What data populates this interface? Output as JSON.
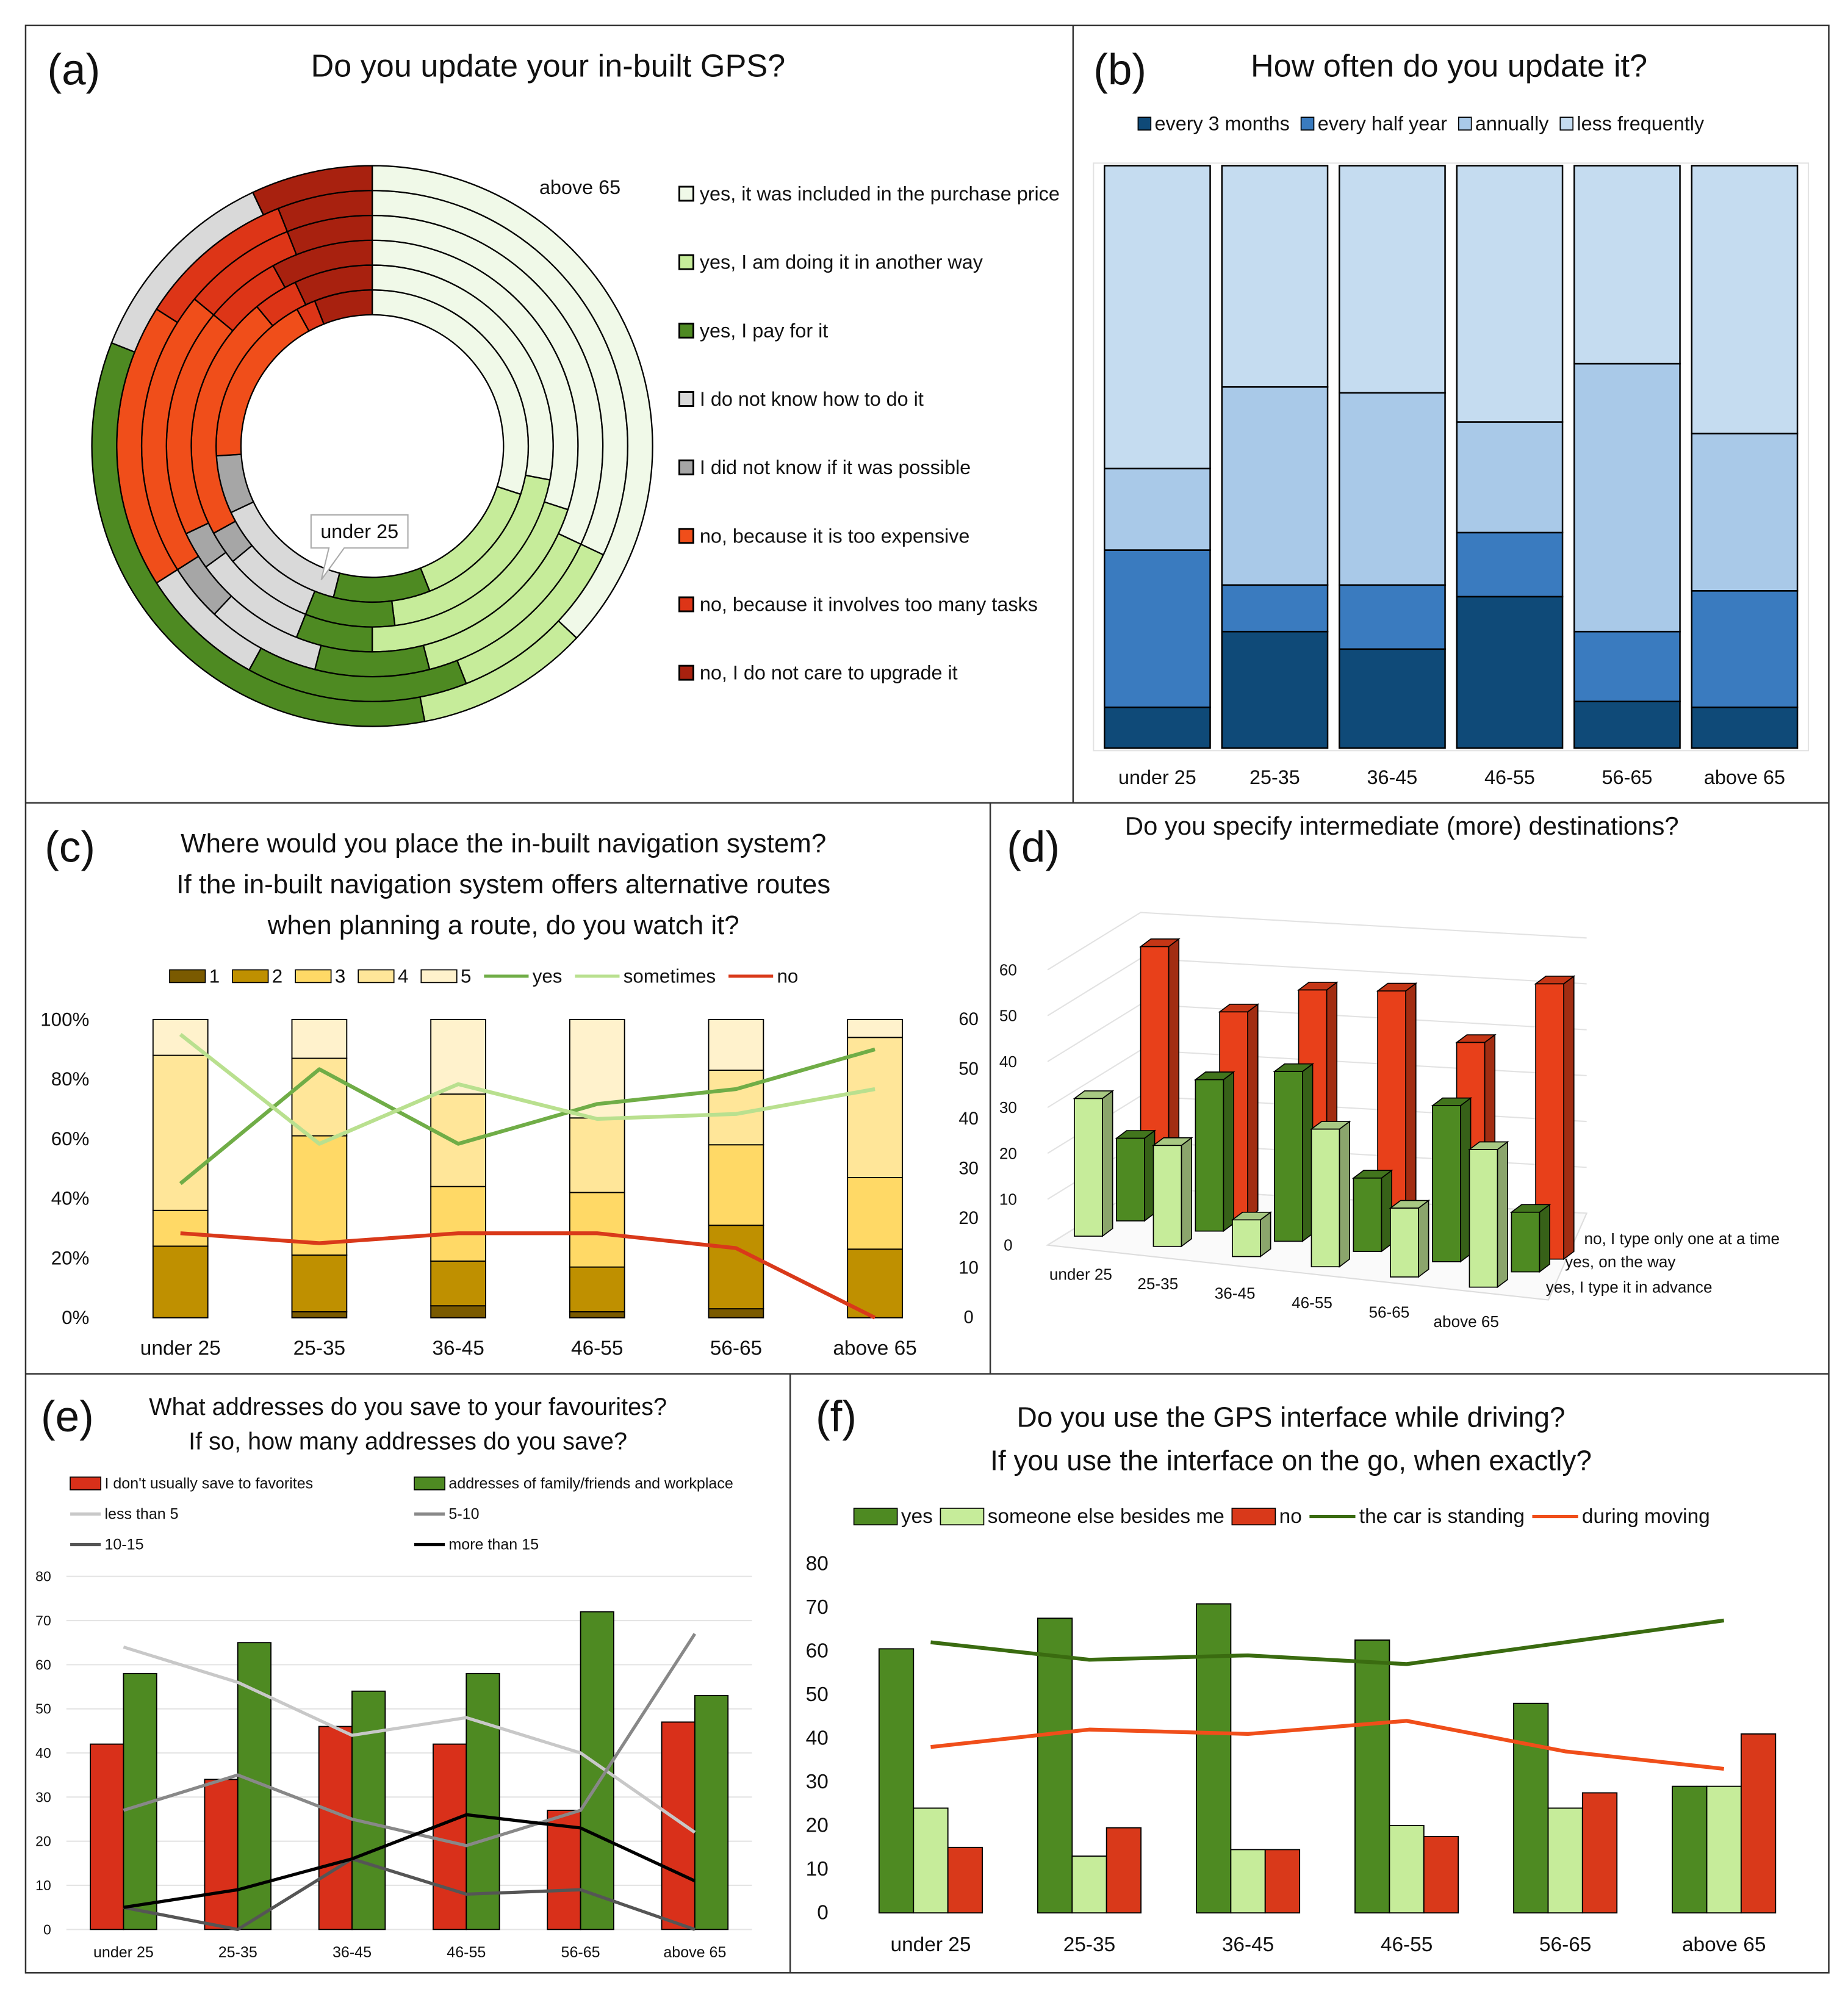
{
  "chart_data": [
    {
      "type": "donut",
      "label": "(a)",
      "title": "Do you update your in-built GPS?",
      "categories": [
        "under 25",
        "25-35",
        "36-45",
        "46-55",
        "56-65",
        "above 65"
      ],
      "series": [
        {
          "name": "yes, it was included in the purchase price",
          "color": "#f0f9e8",
          "values": [
            30,
            28,
            30,
            32,
            32,
            37
          ]
        },
        {
          "name": "yes, I am doing it in another way",
          "color": "#c6ec9a",
          "values": [
            14,
            20,
            20,
            14,
            12,
            10
          ]
        },
        {
          "name": "yes, I pay for it",
          "color": "#4e8a22",
          "values": [
            10,
            8,
            6,
            8,
            14,
            34
          ]
        },
        {
          "name": "I do not know how to do it",
          "color": "#d9d9d9",
          "values": [
            14,
            8,
            9,
            8,
            8,
            12
          ]
        },
        {
          "name": "I did not know if it was possible",
          "color": "#a6a6a6",
          "values": [
            6,
            3,
            3,
            4,
            0,
            0
          ]
        },
        {
          "name": "no, because it is too expensive",
          "color": "#f04e1a",
          "values": [
            18,
            22,
            18,
            20,
            18,
            0
          ]
        },
        {
          "name": "no, because it involves too many tasks",
          "color": "#dd3517",
          "values": [
            2,
            4,
            6,
            8,
            10,
            0
          ]
        },
        {
          "name": "no, I do not care to upgrade it",
          "color": "#a8210f",
          "values": [
            6,
            7,
            8,
            6,
            6,
            7
          ]
        }
      ]
    },
    {
      "type": "stacked_bar",
      "label": "(b)",
      "title": "How often do you update it?",
      "categories": [
        "under 25",
        "25-35",
        "36-45",
        "46-55",
        "56-65",
        "above 65"
      ],
      "ylim": [
        0,
        100
      ],
      "series": [
        {
          "name": "every 3 months",
          "color": "#0f4a78",
          "values": [
            7,
            20,
            17,
            26,
            8,
            7
          ]
        },
        {
          "name": "every half year",
          "color": "#3a7bbf",
          "values": [
            27,
            8,
            11,
            11,
            12,
            20
          ]
        },
        {
          "name": "annually",
          "color": "#a9c9e8",
          "values": [
            14,
            34,
            33,
            19,
            46,
            27
          ]
        },
        {
          "name": "less frequently",
          "color": "#c5dcf0",
          "values": [
            52,
            38,
            39,
            44,
            34,
            46
          ]
        }
      ]
    },
    {
      "type": "bar_line",
      "label": "(c)",
      "stacked": true,
      "title": [
        "Where would you place the in-built navigation system?",
        "If the in-built navigation system offers alternative routes",
        "when planning a route, do you watch it?"
      ],
      "categories": [
        "under 25",
        "25-35",
        "36-45",
        "46-55",
        "56-65",
        "above 65"
      ],
      "ylim": [
        0,
        100
      ],
      "yticks": [
        {
          "value": 0,
          "label": "0%"
        },
        {
          "value": 20,
          "label": "20%"
        },
        {
          "value": 40,
          "label": "40%"
        },
        {
          "value": 60,
          "label": "60%"
        },
        {
          "value": 80,
          "label": "80%"
        },
        {
          "value": 100,
          "label": "100%"
        }
      ],
      "y2lim": [
        0,
        60
      ],
      "y2ticks": [
        0,
        10,
        20,
        30,
        40,
        50,
        60
      ],
      "series": [
        {
          "name": "1",
          "type": "bar",
          "color": "#7a5a00",
          "values": [
            0,
            2,
            4,
            2,
            3,
            0
          ]
        },
        {
          "name": "2",
          "type": "bar",
          "color": "#bf9000",
          "values": [
            24,
            19,
            15,
            15,
            28,
            23
          ]
        },
        {
          "name": "3",
          "type": "bar",
          "color": "#ffd966",
          "values": [
            12,
            40,
            25,
            25,
            27,
            24
          ]
        },
        {
          "name": "4",
          "type": "bar",
          "color": "#ffe699",
          "values": [
            52,
            26,
            31,
            25,
            25,
            47
          ]
        },
        {
          "name": "5",
          "type": "bar",
          "color": "#fff2cc",
          "values": [
            12,
            13,
            25,
            33,
            17,
            6
          ]
        },
        {
          "name": "yes",
          "type": "line",
          "axis": "y2",
          "color": "#70ad47",
          "values": [
            27,
            50,
            35,
            43,
            46,
            54
          ]
        },
        {
          "name": "sometimes",
          "type": "line",
          "axis": "y2",
          "color": "#b9e08f",
          "values": [
            57,
            35,
            47,
            40,
            41,
            46
          ]
        },
        {
          "name": "no",
          "type": "line",
          "axis": "y2",
          "color": "#d9391a",
          "values": [
            17,
            15,
            17,
            17,
            14,
            0
          ]
        }
      ]
    },
    {
      "type": "bar3d",
      "label": "(d)",
      "title": "Do you specify intermediate (more) destinations?",
      "categories": [
        "under 25",
        "25-35",
        "36-45",
        "46-55",
        "56-65",
        "above 65"
      ],
      "ylim": [
        0,
        60
      ],
      "yticks": [
        0,
        10,
        20,
        30,
        40,
        50,
        60
      ],
      "series": [
        {
          "name": "no, I type only one at a time",
          "color": "#e8401a",
          "values": [
            57,
            45,
            52,
            54,
            45,
            60
          ]
        },
        {
          "name": "yes, on the way",
          "color": "#4e8a22",
          "values": [
            18,
            33,
            37,
            16,
            34,
            13
          ]
        },
        {
          "name": "yes, I type it in advance",
          "color": "#c6ec9a",
          "values": [
            30,
            22,
            8,
            30,
            15,
            30
          ]
        }
      ]
    },
    {
      "type": "bar_line",
      "label": "(e)",
      "grid": true,
      "title": [
        "What addresses do you save to your favourites?",
        "If so, how many addresses do you save?"
      ],
      "categories": [
        "under 25",
        "25-35",
        "36-45",
        "46-55",
        "56-65",
        "above 65"
      ],
      "ylim": [
        0,
        80
      ],
      "yticks": [
        0,
        10,
        20,
        30,
        40,
        50,
        60,
        70,
        80
      ],
      "series": [
        {
          "name": "I don't usually save to favorites",
          "type": "bar",
          "color": "#d9301a",
          "values": [
            42,
            34,
            46,
            42,
            27,
            47
          ]
        },
        {
          "name": "addresses of family/friends and workplace",
          "type": "bar",
          "color": "#4e8a22",
          "values": [
            58,
            65,
            54,
            58,
            72,
            53
          ]
        },
        {
          "name": "less than 5",
          "type": "line",
          "color": "#c8c8c8",
          "values": [
            64,
            56,
            44,
            48,
            40,
            22
          ]
        },
        {
          "name": "5-10",
          "type": "line",
          "color": "#888888",
          "values": [
            27,
            35,
            25,
            19,
            27,
            67
          ]
        },
        {
          "name": "10-15",
          "type": "line",
          "color": "#555555",
          "values": [
            5,
            0,
            16,
            8,
            9,
            0
          ]
        },
        {
          "name": "more than 15",
          "type": "line",
          "color": "#000000",
          "values": [
            5,
            9,
            16,
            26,
            23,
            11
          ]
        }
      ]
    },
    {
      "type": "bar_line",
      "label": "(f)",
      "title": [
        "Do you use the GPS interface while driving?",
        "If you use the interface on the go, when exactly?"
      ],
      "categories": [
        "under 25",
        "25-35",
        "36-45",
        "46-55",
        "56-65",
        "above 65"
      ],
      "ylim": [
        0,
        80
      ],
      "yticks": [
        0,
        10,
        20,
        30,
        40,
        50,
        60,
        70,
        80
      ],
      "series": [
        {
          "name": "yes",
          "type": "bar",
          "color": "#4e8a22",
          "values": [
            60.5,
            67.5,
            70.8,
            62.5,
            48,
            29
          ]
        },
        {
          "name": "someone else besides me",
          "type": "bar",
          "color": "#c6ec9a",
          "values": [
            24,
            13,
            14.5,
            20,
            24,
            29
          ]
        },
        {
          "name": "no",
          "type": "bar",
          "color": "#d9391a",
          "values": [
            15,
            19.5,
            14.5,
            17.5,
            27.5,
            41
          ]
        },
        {
          "name": "the car is standing",
          "type": "line",
          "color": "#3a6b10",
          "values": [
            62,
            58,
            59,
            57,
            62,
            67
          ]
        },
        {
          "name": "during moving",
          "type": "line",
          "color": "#f04e1a",
          "values": [
            38,
            42,
            41,
            44,
            37,
            33
          ]
        }
      ]
    }
  ]
}
